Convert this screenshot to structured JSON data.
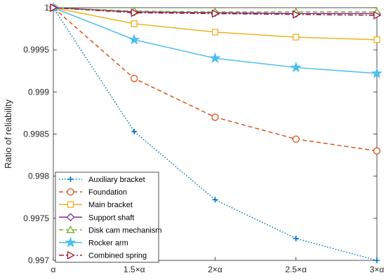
{
  "chart_data": {
    "type": "line",
    "title": "",
    "xlabel": "",
    "ylabel": "Ratio of reliability",
    "categories": [
      "α",
      "1.5×α",
      "2×α",
      "2.5×α",
      "3×α"
    ],
    "x": [
      1,
      1.5,
      2,
      2.5,
      3
    ],
    "ylim": [
      0.997,
      1.0
    ],
    "yticks": [
      0.997,
      0.9975,
      0.998,
      0.9985,
      0.999,
      0.9995,
      1
    ],
    "ytick_labels": [
      "0.997",
      "0.9975",
      "0.998",
      "0.9985",
      "0.999",
      "0.9995",
      "1"
    ],
    "grid": false,
    "legend_position": "bottom-left",
    "series": [
      {
        "name": "Auxiliary bracket",
        "values": [
          1.0,
          0.99853,
          0.99772,
          0.99726,
          0.997
        ],
        "color": "#0072BD",
        "dash": "dotted",
        "marker": "plus"
      },
      {
        "name": "Foundation",
        "values": [
          1.0,
          0.99916,
          0.9987,
          0.99844,
          0.9983
        ],
        "color": "#D95319",
        "dash": "dashed",
        "marker": "circle"
      },
      {
        "name": "Main bracket",
        "values": [
          1.0,
          0.99981,
          0.99971,
          0.99965,
          0.99962
        ],
        "color": "#EDB120",
        "dash": "solid",
        "marker": "square"
      },
      {
        "name": "Support shaft",
        "values": [
          1.0,
          0.99995,
          0.99994,
          0.99993,
          0.99993
        ],
        "color": "#7E2F8E",
        "dash": "solid",
        "marker": "diamond"
      },
      {
        "name": "Disk cam mechanism",
        "values": [
          1.0,
          0.99996,
          0.99995,
          0.99995,
          0.99995
        ],
        "color": "#77AC30",
        "dash": "dashed",
        "marker": "triangle"
      },
      {
        "name": "Rocker arm",
        "values": [
          1.0,
          0.99962,
          0.9994,
          0.99929,
          0.99922
        ],
        "color": "#4DBEEE",
        "dash": "solid",
        "marker": "star"
      },
      {
        "name": "Combined spring",
        "values": [
          1.0,
          0.99994,
          0.99993,
          0.99992,
          0.99991
        ],
        "color": "#A2142F",
        "dash": "dashdot",
        "marker": "triangle-right"
      }
    ]
  }
}
